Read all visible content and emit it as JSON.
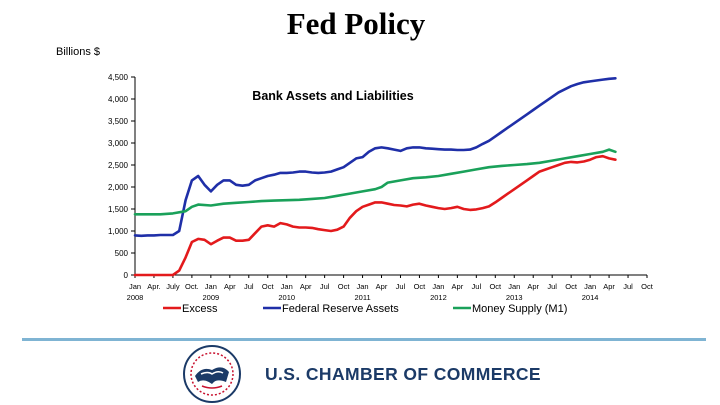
{
  "slide": {
    "title": "Fed Policy",
    "units_label": "Billions $",
    "organization": "U.S. CHAMBER OF COMMERCE"
  },
  "chart_data": {
    "type": "line",
    "title": "Bank Assets and Liabilities",
    "ylabel": "Billions $",
    "ylim": [
      0,
      4500
    ],
    "yticks": [
      0,
      500,
      1000,
      1500,
      2000,
      2500,
      3000,
      3500,
      4000,
      4500
    ],
    "ytick_labels": [
      "0",
      "500",
      "1,000",
      "1,500",
      "2,000",
      "2,500",
      "3,000",
      "3,500",
      "4,000",
      "4,500"
    ],
    "xlim": [
      0,
      81
    ],
    "x_month_ticks": [
      {
        "x": 0,
        "label": "Jan"
      },
      {
        "x": 3,
        "label": "Apr."
      },
      {
        "x": 6,
        "label": "July"
      },
      {
        "x": 9,
        "label": "Oct."
      },
      {
        "x": 12,
        "label": "Jan"
      },
      {
        "x": 15,
        "label": "Apr"
      },
      {
        "x": 18,
        "label": "Jul"
      },
      {
        "x": 21,
        "label": "Oct"
      },
      {
        "x": 24,
        "label": "Jan"
      },
      {
        "x": 27,
        "label": "Apr"
      },
      {
        "x": 30,
        "label": "Jul"
      },
      {
        "x": 33,
        "label": "Oct"
      },
      {
        "x": 36,
        "label": "Jan"
      },
      {
        "x": 39,
        "label": "Apr"
      },
      {
        "x": 42,
        "label": "Jul"
      },
      {
        "x": 45,
        "label": "Oct"
      },
      {
        "x": 48,
        "label": "Jan"
      },
      {
        "x": 51,
        "label": "Apr"
      },
      {
        "x": 54,
        "label": "Jul"
      },
      {
        "x": 57,
        "label": "Oct"
      },
      {
        "x": 60,
        "label": "Jan"
      },
      {
        "x": 63,
        "label": "Apr"
      },
      {
        "x": 66,
        "label": "Jul"
      },
      {
        "x": 69,
        "label": "Oct"
      },
      {
        "x": 72,
        "label": "Jan"
      },
      {
        "x": 75,
        "label": "Apr"
      },
      {
        "x": 78,
        "label": "Jul"
      },
      {
        "x": 81,
        "label": "Oct"
      }
    ],
    "x_year_ticks": [
      {
        "x": 0,
        "label": "2008"
      },
      {
        "x": 12,
        "label": "2009"
      },
      {
        "x": 24,
        "label": "2010"
      },
      {
        "x": 36,
        "label": "2011"
      },
      {
        "x": 48,
        "label": "2012"
      },
      {
        "x": 60,
        "label": "2013"
      },
      {
        "x": 72,
        "label": "2014"
      }
    ],
    "series": [
      {
        "name": "Excess",
        "color": "#e31a1c",
        "points": [
          [
            0,
            0
          ],
          [
            6,
            0
          ],
          [
            7,
            100
          ],
          [
            8,
            400
          ],
          [
            9,
            750
          ],
          [
            10,
            820
          ],
          [
            11,
            800
          ],
          [
            12,
            700
          ],
          [
            13,
            780
          ],
          [
            14,
            850
          ],
          [
            15,
            850
          ],
          [
            16,
            780
          ],
          [
            17,
            780
          ],
          [
            18,
            800
          ],
          [
            19,
            950
          ],
          [
            20,
            1100
          ],
          [
            21,
            1130
          ],
          [
            22,
            1100
          ],
          [
            23,
            1180
          ],
          [
            24,
            1150
          ],
          [
            25,
            1100
          ],
          [
            26,
            1080
          ],
          [
            27,
            1080
          ],
          [
            28,
            1070
          ],
          [
            29,
            1040
          ],
          [
            30,
            1020
          ],
          [
            31,
            1000
          ],
          [
            32,
            1030
          ],
          [
            33,
            1100
          ],
          [
            34,
            1300
          ],
          [
            35,
            1450
          ],
          [
            36,
            1550
          ],
          [
            37,
            1600
          ],
          [
            38,
            1650
          ],
          [
            39,
            1650
          ],
          [
            40,
            1620
          ],
          [
            41,
            1590
          ],
          [
            42,
            1580
          ],
          [
            43,
            1560
          ],
          [
            44,
            1600
          ],
          [
            45,
            1620
          ],
          [
            46,
            1580
          ],
          [
            47,
            1550
          ],
          [
            48,
            1520
          ],
          [
            49,
            1500
          ],
          [
            50,
            1520
          ],
          [
            51,
            1550
          ],
          [
            52,
            1500
          ],
          [
            53,
            1480
          ],
          [
            54,
            1490
          ],
          [
            55,
            1520
          ],
          [
            56,
            1560
          ],
          [
            57,
            1650
          ],
          [
            58,
            1750
          ],
          [
            59,
            1850
          ],
          [
            60,
            1950
          ],
          [
            61,
            2050
          ],
          [
            62,
            2150
          ],
          [
            63,
            2250
          ],
          [
            64,
            2350
          ],
          [
            65,
            2400
          ],
          [
            66,
            2450
          ],
          [
            67,
            2500
          ],
          [
            68,
            2550
          ],
          [
            69,
            2570
          ],
          [
            70,
            2560
          ],
          [
            71,
            2580
          ],
          [
            72,
            2620
          ],
          [
            73,
            2680
          ],
          [
            74,
            2700
          ],
          [
            75,
            2650
          ],
          [
            76,
            2620
          ]
        ]
      },
      {
        "name": "Federal Reserve Assets",
        "color": "#1f2fa8",
        "points": [
          [
            0,
            900
          ],
          [
            1,
            890
          ],
          [
            2,
            900
          ],
          [
            3,
            900
          ],
          [
            4,
            910
          ],
          [
            5,
            910
          ],
          [
            6,
            910
          ],
          [
            7,
            1000
          ],
          [
            8,
            1700
          ],
          [
            9,
            2150
          ],
          [
            10,
            2250
          ],
          [
            11,
            2050
          ],
          [
            12,
            1900
          ],
          [
            13,
            2050
          ],
          [
            14,
            2150
          ],
          [
            15,
            2150
          ],
          [
            16,
            2050
          ],
          [
            17,
            2030
          ],
          [
            18,
            2050
          ],
          [
            19,
            2150
          ],
          [
            20,
            2200
          ],
          [
            21,
            2250
          ],
          [
            22,
            2280
          ],
          [
            23,
            2320
          ],
          [
            24,
            2320
          ],
          [
            25,
            2330
          ],
          [
            26,
            2350
          ],
          [
            27,
            2350
          ],
          [
            28,
            2330
          ],
          [
            29,
            2320
          ],
          [
            30,
            2330
          ],
          [
            31,
            2350
          ],
          [
            32,
            2400
          ],
          [
            33,
            2450
          ],
          [
            34,
            2550
          ],
          [
            35,
            2650
          ],
          [
            36,
            2680
          ],
          [
            37,
            2800
          ],
          [
            38,
            2880
          ],
          [
            39,
            2900
          ],
          [
            40,
            2880
          ],
          [
            41,
            2850
          ],
          [
            42,
            2820
          ],
          [
            43,
            2880
          ],
          [
            44,
            2900
          ],
          [
            45,
            2900
          ],
          [
            46,
            2880
          ],
          [
            47,
            2870
          ],
          [
            48,
            2860
          ],
          [
            49,
            2850
          ],
          [
            50,
            2850
          ],
          [
            51,
            2840
          ],
          [
            52,
            2840
          ],
          [
            53,
            2850
          ],
          [
            54,
            2900
          ],
          [
            55,
            2980
          ],
          [
            56,
            3050
          ],
          [
            57,
            3150
          ],
          [
            58,
            3250
          ],
          [
            59,
            3350
          ],
          [
            60,
            3450
          ],
          [
            61,
            3550
          ],
          [
            62,
            3650
          ],
          [
            63,
            3750
          ],
          [
            64,
            3850
          ],
          [
            65,
            3950
          ],
          [
            66,
            4050
          ],
          [
            67,
            4150
          ],
          [
            68,
            4220
          ],
          [
            69,
            4290
          ],
          [
            70,
            4340
          ],
          [
            71,
            4380
          ],
          [
            72,
            4400
          ],
          [
            73,
            4420
          ],
          [
            74,
            4440
          ],
          [
            75,
            4460
          ],
          [
            76,
            4470
          ]
        ]
      },
      {
        "name": "Money Supply (M1)",
        "color": "#1aa15a",
        "points": [
          [
            0,
            1380
          ],
          [
            4,
            1380
          ],
          [
            6,
            1400
          ],
          [
            8,
            1450
          ],
          [
            9,
            1550
          ],
          [
            10,
            1600
          ],
          [
            12,
            1580
          ],
          [
            14,
            1620
          ],
          [
            16,
            1640
          ],
          [
            18,
            1660
          ],
          [
            20,
            1680
          ],
          [
            22,
            1690
          ],
          [
            24,
            1700
          ],
          [
            26,
            1710
          ],
          [
            28,
            1730
          ],
          [
            30,
            1750
          ],
          [
            32,
            1800
          ],
          [
            34,
            1850
          ],
          [
            36,
            1900
          ],
          [
            38,
            1950
          ],
          [
            39,
            2000
          ],
          [
            40,
            2100
          ],
          [
            42,
            2150
          ],
          [
            44,
            2200
          ],
          [
            46,
            2220
          ],
          [
            48,
            2250
          ],
          [
            50,
            2300
          ],
          [
            52,
            2350
          ],
          [
            54,
            2400
          ],
          [
            56,
            2450
          ],
          [
            58,
            2480
          ],
          [
            60,
            2500
          ],
          [
            62,
            2520
          ],
          [
            64,
            2550
          ],
          [
            66,
            2600
          ],
          [
            68,
            2650
          ],
          [
            70,
            2700
          ],
          [
            72,
            2750
          ],
          [
            74,
            2800
          ],
          [
            75,
            2850
          ],
          [
            76,
            2800
          ]
        ]
      }
    ],
    "legend": [
      {
        "name": "Excess",
        "color": "#e31a1c"
      },
      {
        "name": "Federal Reserve Assets",
        "color": "#1f2fa8"
      },
      {
        "name": "Money Supply (M1)",
        "color": "#1aa15a"
      }
    ]
  }
}
